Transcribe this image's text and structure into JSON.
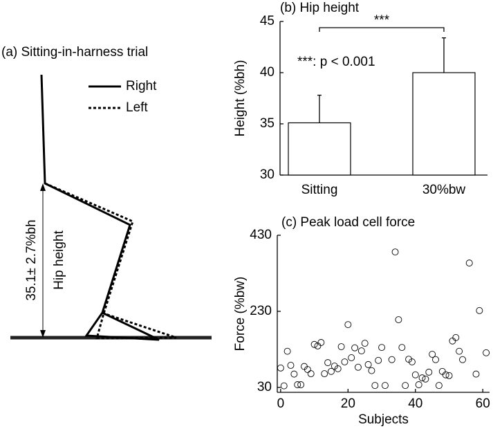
{
  "diagram": {
    "title": "(a) Sitting-in-harness trial",
    "legend": [
      "Right",
      "Left"
    ],
    "measurement": "35.1± 2.7%bh",
    "axis_label": "Hip height"
  },
  "chart_data": [
    {
      "type": "bar",
      "title": "(b) Hip height",
      "categories": [
        "Sitting",
        "30%bw"
      ],
      "values": [
        35.1,
        40
      ],
      "errors": [
        2.7,
        3.4
      ],
      "color": "#ffffff",
      "ylim": [
        30,
        45
      ],
      "yticks": [
        30,
        35,
        40,
        45
      ],
      "ylabel": "Height (%bh)",
      "significance": "***",
      "annotation": "***: p < 0.001"
    },
    {
      "type": "scatter",
      "title": "(c) Peak load cell force",
      "xlabel": "Subjects",
      "ylabel": "Force (%bw)",
      "color": "#000000",
      "xlim": [
        -1,
        62
      ],
      "ylim": [
        17,
        430
      ],
      "xticks": [
        0,
        20,
        40,
        60
      ],
      "yticks": [
        30,
        230,
        430
      ],
      "x": [
        0,
        1,
        2,
        3,
        4,
        5,
        6,
        7,
        8,
        9,
        10,
        11,
        12,
        13,
        14,
        15,
        16,
        17,
        18,
        19,
        20,
        21,
        22,
        23,
        24,
        25,
        26,
        27,
        28,
        29,
        30,
        31,
        33,
        34,
        35,
        36,
        37,
        38,
        39,
        40,
        41,
        42,
        43,
        44,
        45,
        46,
        47,
        48,
        49,
        50,
        51,
        52,
        53,
        54,
        56,
        58,
        59,
        61
      ],
      "values": [
        81,
        34,
        125,
        88,
        65,
        37,
        37,
        85,
        77,
        66,
        143,
        139,
        148,
        66,
        95,
        72,
        86,
        79,
        137,
        97,
        195,
        108,
        134,
        83,
        126,
        146,
        90,
        74,
        35,
        101,
        135,
        35,
        103,
        386,
        208,
        135,
        35,
        104,
        97,
        63,
        37,
        55,
        52,
        70,
        117,
        103,
        35,
        72,
        63,
        61,
        152,
        161,
        125,
        103,
        357,
        65,
        232,
        121
      ]
    }
  ]
}
